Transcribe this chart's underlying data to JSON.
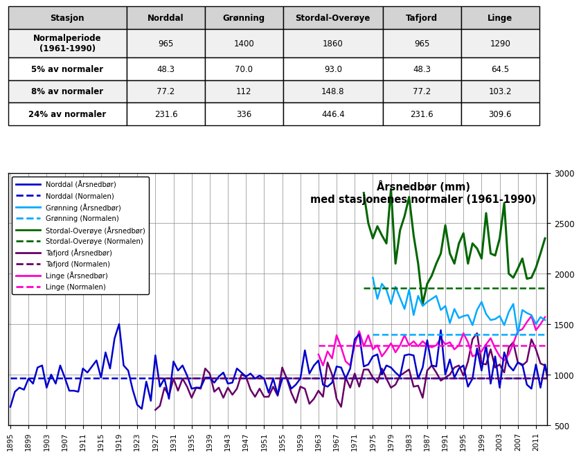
{
  "table": {
    "headers": [
      "Stasjon",
      "Norddal",
      "Grønning",
      "Stordal-Overøye",
      "Tafjord",
      "Linge"
    ],
    "rows": [
      [
        "Normalperiode\n(1961-1990)",
        "965",
        "1400",
        "1860",
        "965",
        "1290"
      ],
      [
        "5% av normaler",
        "48.3",
        "70.0",
        "93.0",
        "48.3",
        "64.5"
      ],
      [
        "8% av normaler",
        "77.2",
        "112",
        "148.8",
        "77.2",
        "103.2"
      ],
      [
        "24% av normaler",
        "231.6",
        "336",
        "446.4",
        "231.6",
        "309.6"
      ]
    ],
    "col_widths": [
      0.22,
      0.145,
      0.145,
      0.185,
      0.145,
      0.145
    ],
    "header_bg": "#D3D3D3",
    "odd_row_bg": "#F0F0F0",
    "even_row_bg": "#FFFFFF"
  },
  "chart": {
    "title_line1": "Årsnedbør (mm)",
    "title_line2": "med stasjonenes normaler (1961-1990)",
    "ylim": [
      500,
      3000
    ],
    "yticks": [
      500,
      1000,
      1500,
      2000,
      2500,
      3000
    ],
    "xlim_start": 1895,
    "xlim_end": 2013,
    "normals": {
      "Norddal": 965,
      "Groenning": 1400,
      "Stordal": 1860,
      "Tafjord": 965,
      "Linge": 1290
    },
    "colors": {
      "Norddal": "#0000CC",
      "Groenning": "#00AAFF",
      "Stordal": "#006600",
      "Tafjord": "#660066",
      "Linge": "#FF00CC"
    },
    "norddal_start": 1895,
    "tafjord_start": 1927,
    "linge_start": 1963,
    "groenning_start": 1975,
    "stordal_start": 1973,
    "norddal_data": [
      680,
      830,
      870,
      850,
      960,
      910,
      1070,
      1090,
      870,
      1000,
      910,
      1090,
      970,
      840,
      840,
      830,
      1060,
      1020,
      1080,
      1140,
      970,
      1220,
      1060,
      1360,
      1500,
      1090,
      1040,
      850,
      700,
      660,
      930,
      740,
      1190,
      880,
      960,
      760,
      1130,
      1040,
      1090,
      990,
      860,
      870,
      870,
      970,
      970,
      920,
      980,
      1020,
      910,
      920,
      1060,
      1020,
      980,
      1010,
      960,
      990,
      960,
      820,
      960,
      800,
      960,
      970,
      860,
      900,
      960,
      1240,
      1010,
      1090,
      1140,
      900,
      880,
      920,
      1080,
      1070,
      960,
      1060,
      1350,
      1400,
      1080,
      1100,
      1180,
      1200,
      1000,
      1090,
      1070,
      1020,
      980,
      1190,
      1200,
      1190,
      960,
      1070,
      1340,
      1090,
      1080,
      1440,
      1000,
      1150,
      970,
      1060,
      1090,
      880,
      960,
      1260,
      1040,
      1290,
      910,
      1180,
      870,
      1220,
      1090,
      1040,
      1120,
      1100,
      900,
      860,
      1100,
      870,
      1100,
      900
    ],
    "tafjord_data": [
      650,
      690,
      870,
      790,
      960,
      840,
      960,
      880,
      770,
      870,
      860,
      1060,
      1010,
      830,
      870,
      770,
      870,
      800,
      860,
      1000,
      980,
      850,
      780,
      860,
      780,
      780,
      880,
      790,
      1070,
      960,
      820,
      720,
      880,
      860,
      710,
      760,
      840,
      780,
      1120,
      1000,
      760,
      680,
      970,
      870,
      1010,
      880,
      1050,
      1050,
      970,
      920,
      1060,
      960,
      870,
      900,
      990,
      1020,
      1050,
      880,
      890,
      770,
      1040,
      1090,
      1020,
      940,
      970,
      1000,
      1070,
      1090,
      990,
      1130,
      1350,
      1410,
      1110,
      1100,
      1250,
      1070,
      1100,
      1020,
      1270,
      1320,
      1120,
      1090,
      1130,
      1350,
      1250,
      1110,
      1090,
      860,
      870
    ],
    "linge_data": [
      1200,
      1090,
      1230,
      1160,
      1390,
      1270,
      1130,
      1090,
      1300,
      1430,
      1280,
      1390,
      1250,
      1290,
      1180,
      1240,
      1310,
      1220,
      1290,
      1390,
      1290,
      1330,
      1280,
      1330,
      1290,
      1270,
      1290,
      1360,
      1300,
      1320,
      1250,
      1290,
      1410,
      1320,
      1180,
      1200,
      1230,
      1300,
      1360,
      1260,
      1180,
      1140,
      1200,
      1310,
      1430,
      1450,
      1520,
      1580,
      1440,
      1500,
      1570
    ],
    "groenning_data": [
      1960,
      1750,
      1900,
      1840,
      1700,
      1870,
      1760,
      1650,
      1840,
      1590,
      1780,
      1680,
      1720,
      1750,
      1780,
      1640,
      1680,
      1510,
      1650,
      1560,
      1580,
      1590,
      1490,
      1640,
      1720,
      1600,
      1540,
      1550,
      1580,
      1490,
      1620,
      1700,
      1400,
      1640,
      1610,
      1590,
      1500,
      1570,
      1540
    ],
    "stordal_data": [
      2800,
      2500,
      2350,
      2470,
      2380,
      2300,
      2840,
      2100,
      2430,
      2570,
      2760,
      2380,
      2100,
      1700,
      1900,
      1980,
      2100,
      2200,
      2480,
      2200,
      2100,
      2300,
      2400,
      2100,
      2300,
      2250,
      2150,
      2600,
      2200,
      2180,
      2350,
      2700,
      2000,
      1960,
      2050,
      2150,
      1950,
      1960,
      2060,
      2200,
      2350
    ]
  }
}
